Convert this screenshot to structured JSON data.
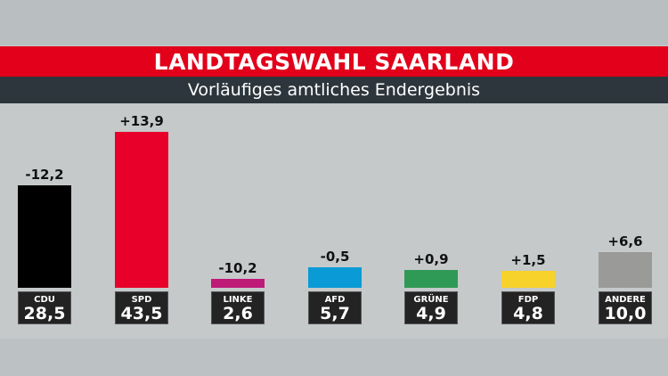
{
  "header": {
    "title": "LANDTAGSWAHL SAARLAND",
    "subtitle": "Vorläufiges amtliches Endergebnis"
  },
  "chart_data": {
    "type": "bar",
    "title": "LANDTAGSWAHL SAARLAND",
    "subtitle": "Vorläufiges amtliches Endergebnis",
    "categories": [
      "CDU",
      "SPD",
      "LINKE",
      "AFD",
      "GRÜNE",
      "FDP",
      "ANDERE"
    ],
    "values": [
      "28,5",
      "43,5",
      "2,6",
      "5,7",
      "4,9",
      "4,8",
      "10,0"
    ],
    "values_numeric": [
      28.5,
      43.5,
      2.6,
      5.7,
      4.9,
      4.8,
      10.0
    ],
    "changes": [
      "-12,2",
      "+13,9",
      "-10,2",
      "-0,5",
      "+0,9",
      "+1,5",
      "+6,6"
    ],
    "colors": [
      "#000000",
      "#e8002a",
      "#be1a78",
      "#0a9ad6",
      "#2f9a55",
      "#f7d22a",
      "#9a9a98"
    ],
    "ylim": [
      0,
      43.5
    ],
    "grid": false
  }
}
